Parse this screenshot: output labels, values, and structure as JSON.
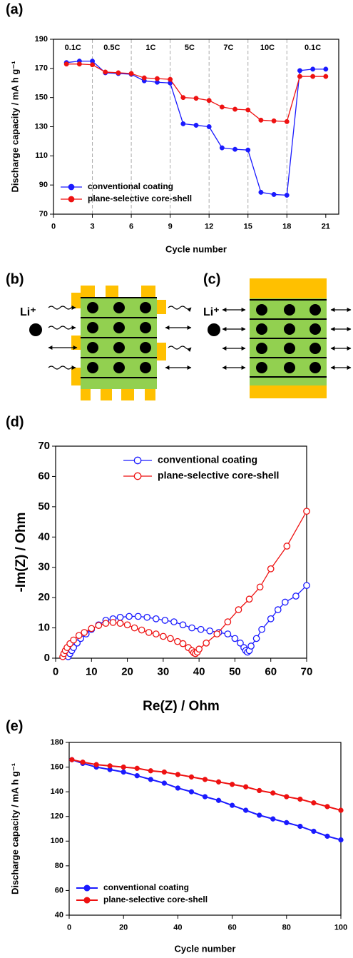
{
  "chart_data": [
    {
      "type": "line",
      "panel_label": "(a)",
      "xlabel": "Cycle number",
      "ylabel": "Discharge capacity / mA h g⁻¹",
      "xlim": [
        0,
        22
      ],
      "ylim": [
        70,
        190
      ],
      "xticks": [
        0,
        3,
        6,
        9,
        12,
        15,
        18,
        21
      ],
      "yticks": [
        70,
        90,
        110,
        130,
        150,
        170,
        190
      ],
      "rate_boundaries": [
        3,
        6,
        9,
        12,
        15,
        18
      ],
      "rate_labels": [
        "0.1C",
        "0.5C",
        "1C",
        "5C",
        "7C",
        "10C",
        "0.1C"
      ],
      "legend": "lower left",
      "marker": "filled-circle",
      "x": [
        1,
        2,
        3,
        4,
        5,
        6,
        7,
        8,
        9,
        10,
        11,
        12,
        13,
        14,
        15,
        16,
        17,
        18,
        19,
        20,
        21
      ],
      "series": [
        {
          "name": "conventional coating",
          "color": "#1a1aff",
          "values": [
            174,
            175,
            175,
            167,
            166.5,
            166,
            161.5,
            160.5,
            160,
            132,
            131,
            130,
            115.5,
            114.5,
            114,
            85,
            83.5,
            83,
            168.5,
            169.5,
            169.5
          ]
        },
        {
          "name": "plane-selective core-shell",
          "color": "#ee1111",
          "values": [
            173,
            173,
            172.5,
            167.5,
            167,
            166.5,
            163.5,
            163,
            162.5,
            150,
            149.5,
            148,
            143.5,
            142,
            141.5,
            134.5,
            134,
            133.5,
            164.5,
            164.5,
            164.5
          ]
        }
      ]
    },
    {
      "type": "line",
      "panel_label": "(d)",
      "xlabel": "Re(Z) / Ohm",
      "ylabel": "-Im(Z) / Ohm",
      "xlim": [
        0,
        70
      ],
      "ylim": [
        0,
        70
      ],
      "xticks": [
        0,
        10,
        20,
        30,
        40,
        50,
        60,
        70
      ],
      "yticks": [
        0,
        10,
        20,
        30,
        40,
        50,
        60,
        70
      ],
      "legend": "upper right",
      "marker": "open-circle",
      "series": [
        {
          "name": "conventional coating",
          "color": "#1a1aff",
          "x": [
            3.5,
            4,
            4.5,
            5,
            6,
            7,
            8.5,
            10,
            12,
            14,
            16,
            18,
            20.5,
            23,
            25.5,
            28,
            30.5,
            33,
            35.5,
            38,
            40.5,
            43,
            45.5,
            48,
            50,
            51.5,
            52.5,
            53,
            53.5,
            54,
            54.5,
            56,
            57.5,
            60,
            62,
            64,
            67,
            70
          ],
          "values": [
            0.5,
            1.5,
            2.5,
            3.5,
            5,
            6.5,
            8,
            9.5,
            11,
            12.5,
            13,
            13.5,
            13.8,
            13.8,
            13.5,
            13,
            12.5,
            12,
            11,
            10,
            9.5,
            9,
            8.5,
            8,
            6.5,
            5,
            3.5,
            2.5,
            2,
            2.5,
            4,
            6.5,
            9.5,
            13,
            16,
            18.5,
            20.5,
            24
          ]
        },
        {
          "name": "plane-selective core-shell",
          "color": "#ee1111",
          "x": [
            2,
            2.3,
            2.7,
            3.2,
            4,
            5,
            6.5,
            8,
            10,
            12,
            14,
            16,
            18,
            20,
            22,
            24,
            26,
            28,
            30,
            32,
            34,
            35.5,
            37,
            38,
            38.5,
            39,
            39.5,
            40,
            42,
            45,
            48,
            51,
            54,
            57,
            60,
            64.5,
            70
          ],
          "values": [
            0.5,
            1.5,
            2.5,
            3.5,
            4.8,
            6,
            7.5,
            8.5,
            9.8,
            10.8,
            11.5,
            11.8,
            11.5,
            11,
            10,
            9.3,
            8.5,
            8,
            7.2,
            6.5,
            5.5,
            4.8,
            3.5,
            2.5,
            1.8,
            1.5,
            2,
            3,
            5,
            8,
            12,
            16,
            19.5,
            23.5,
            29.5,
            37,
            48.5
          ]
        }
      ]
    },
    {
      "type": "line",
      "panel_label": "(e)",
      "xlabel": "Cycle number",
      "ylabel": "Discharge capacity / mA h g⁻¹",
      "xlim": [
        0,
        100
      ],
      "ylim": [
        40,
        180
      ],
      "xticks": [
        0,
        20,
        40,
        60,
        80,
        100
      ],
      "yticks": [
        40,
        60,
        80,
        100,
        120,
        140,
        160,
        180
      ],
      "legend": "lower left",
      "marker": "filled-circle",
      "x": [
        1,
        5,
        10,
        15,
        20,
        25,
        30,
        35,
        40,
        45,
        50,
        55,
        60,
        65,
        70,
        75,
        80,
        85,
        90,
        95,
        100
      ],
      "series": [
        {
          "name": "conventional coating",
          "color": "#1a1aff",
          "values": [
            166,
            163,
            160,
            158,
            156,
            153,
            150,
            147,
            143,
            140,
            136,
            133,
            129,
            125,
            121,
            118,
            115,
            112,
            108,
            104,
            101
          ]
        },
        {
          "name": "plane-selective core-shell",
          "color": "#ee1111",
          "values": [
            166,
            164,
            162,
            161,
            160,
            159,
            157,
            156,
            154,
            152,
            150,
            148,
            146,
            144,
            141,
            139,
            136,
            134,
            131,
            128,
            125
          ]
        }
      ]
    }
  ],
  "schematics": [
    {
      "panel_label": "(b)",
      "ion_label": "Li⁺"
    },
    {
      "panel_label": "(c)",
      "ion_label": "Li⁺"
    }
  ]
}
